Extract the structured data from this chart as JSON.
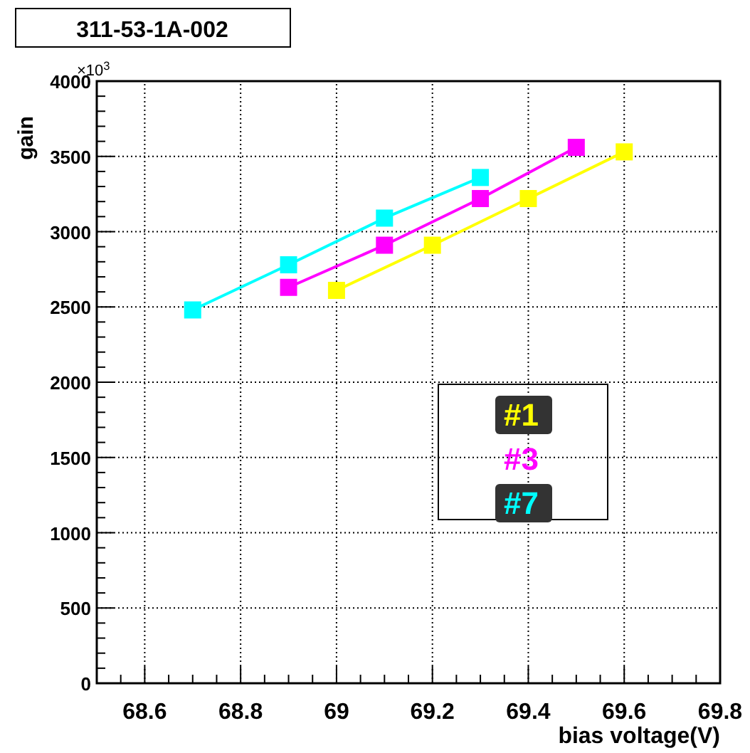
{
  "chart_data": {
    "type": "line",
    "title": "311-53-1A-002",
    "xlabel": "bias voltage(V)",
    "ylabel": "gain",
    "annotations": [
      "×10$^{3}$"
    ],
    "xlim": [
      68.5,
      69.8
    ],
    "xticks": [
      68.6,
      68.8,
      69,
      69.2,
      69.4,
      69.6,
      69.8
    ],
    "ylim": [
      0,
      4000
    ],
    "yticks": [
      0,
      500,
      1000,
      1500,
      2000,
      2500,
      3000,
      3500,
      4000
    ],
    "grid": true,
    "legend": "right",
    "marker": "square",
    "line_style": "solid",
    "series": [
      {
        "name": "#1",
        "color": "#ffff00",
        "x": [
          69.0,
          69.2,
          69.4,
          69.6
        ],
        "values": [
          2610,
          2910,
          3220,
          3530
        ]
      },
      {
        "name": "#3",
        "color": "#ff00ff",
        "x": [
          68.9,
          69.1,
          69.3,
          69.5
        ],
        "values": [
          2630,
          2910,
          3220,
          3560
        ]
      },
      {
        "name": "#7",
        "color": "#00ffff",
        "x": [
          68.7,
          68.9,
          69.1,
          69.3
        ],
        "values": [
          2480,
          2780,
          3090,
          3360
        ]
      }
    ]
  }
}
